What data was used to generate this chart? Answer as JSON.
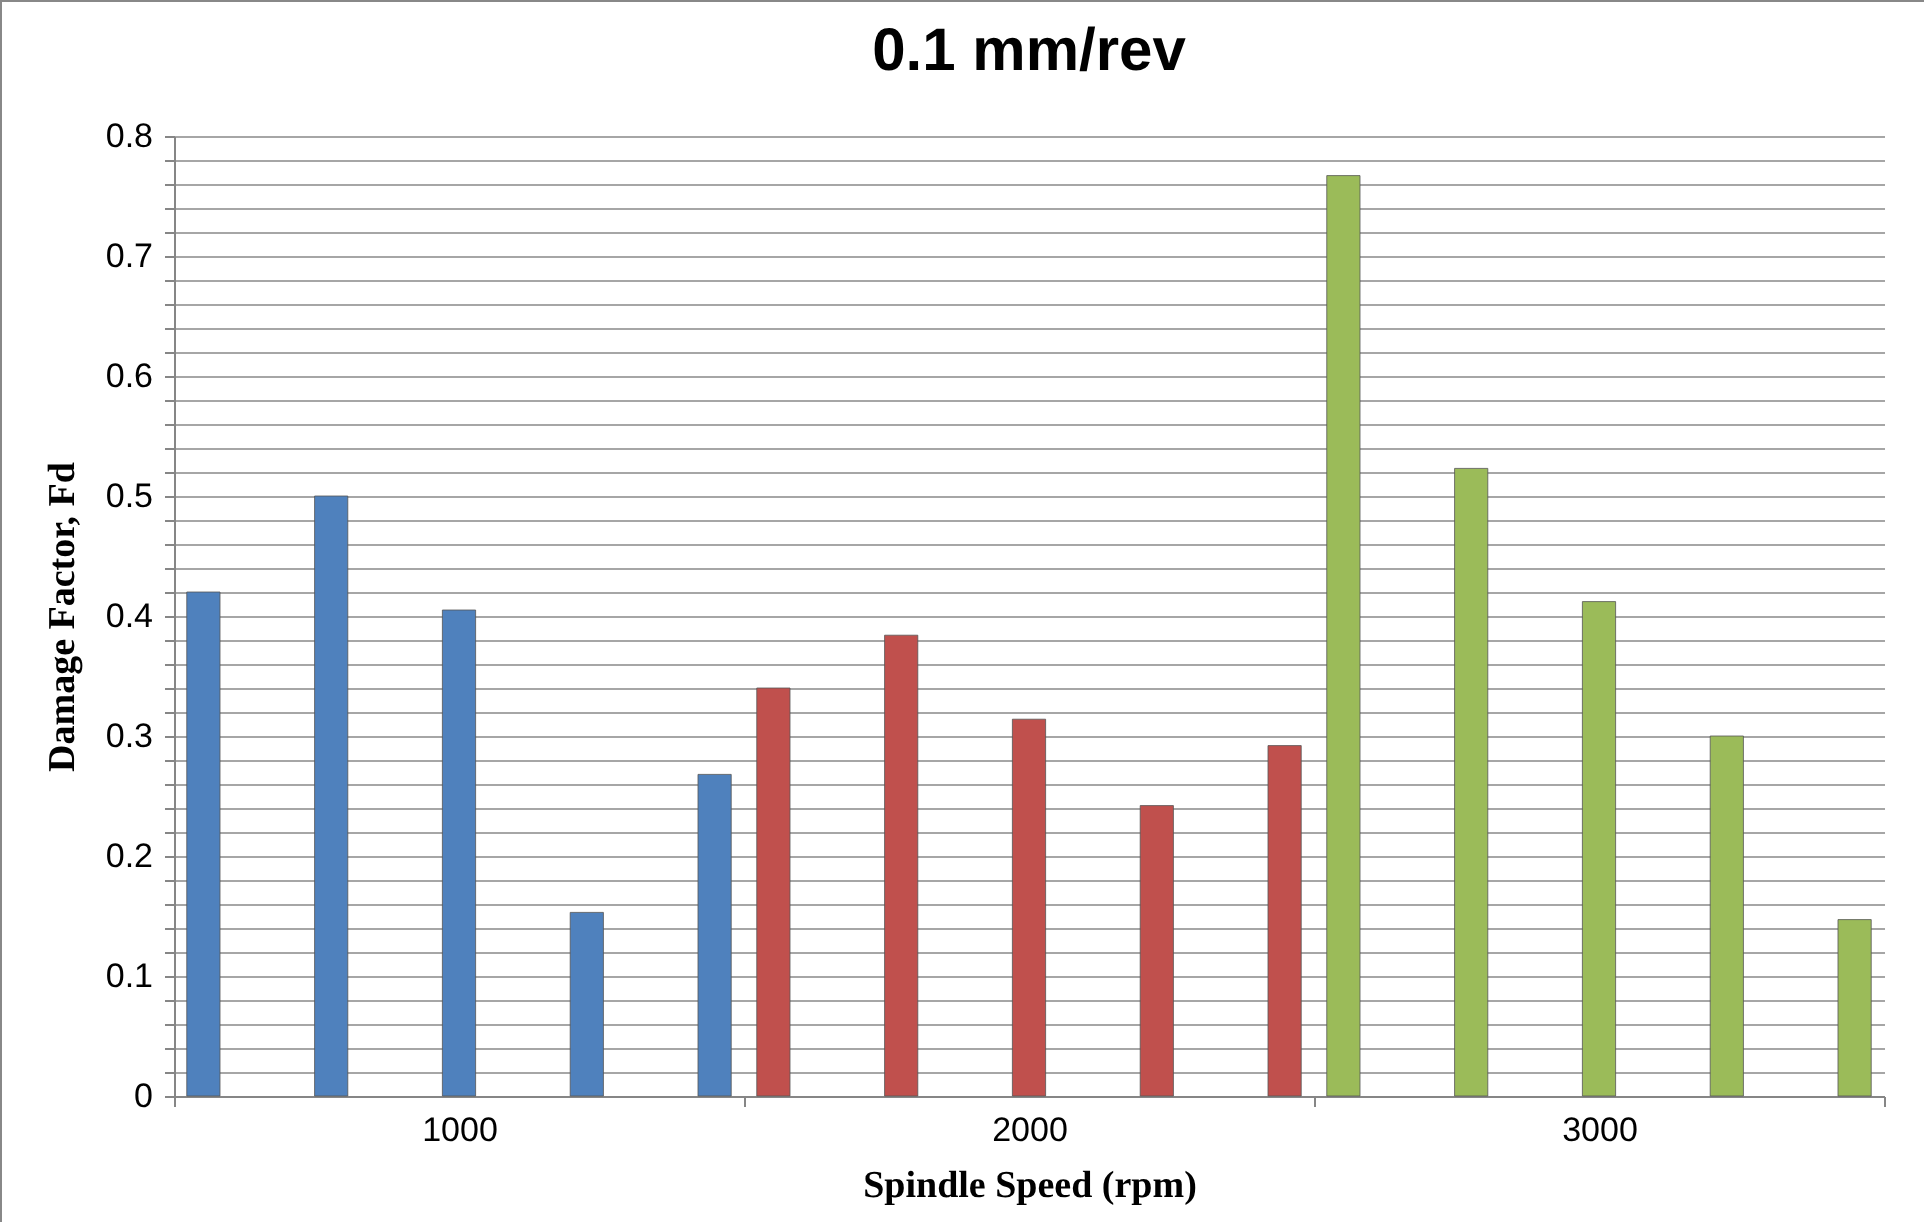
{
  "chart_data": {
    "type": "bar",
    "title": "0.1 mm/rev",
    "xlabel": "Spindle Speed (rpm)",
    "ylabel": "Damage Factor, Fd",
    "categories": [
      "1000",
      "2000",
      "3000"
    ],
    "series": [
      {
        "colors": [
          "#4f81bd",
          "#c0504d",
          "#9bbb59"
        ],
        "values": [
          0.42,
          0.34,
          0.767
        ]
      },
      {
        "colors": [
          "#4f81bd",
          "#c0504d",
          "#9bbb59"
        ],
        "values": [
          0.5,
          0.384,
          0.523
        ]
      },
      {
        "colors": [
          "#4f81bd",
          "#c0504d",
          "#9bbb59"
        ],
        "values": [
          0.405,
          0.314,
          0.412
        ]
      },
      {
        "colors": [
          "#4f81bd",
          "#c0504d",
          "#9bbb59"
        ],
        "values": [
          0.153,
          0.242,
          0.3
        ]
      },
      {
        "colors": [
          "#4f81bd",
          "#c0504d",
          "#9bbb59"
        ],
        "values": [
          0.268,
          0.292,
          0.147
        ]
      }
    ],
    "ylim": [
      0,
      0.8
    ],
    "yticks": [
      0,
      {
        "value": 0.02,
        "label": null
      },
      {
        "value": 0.04,
        "label": null
      },
      {
        "value": 0.06,
        "label": null
      },
      {
        "value": 0.08,
        "label": null
      },
      0.1,
      {
        "value": 0.12,
        "label": null
      },
      {
        "value": 0.14,
        "label": null
      },
      {
        "value": 0.16,
        "label": null
      },
      {
        "value": 0.18,
        "label": null
      },
      0.2,
      {
        "value": 0.22,
        "label": null
      },
      {
        "value": 0.24,
        "label": null
      },
      {
        "value": 0.26,
        "label": null
      },
      {
        "value": 0.28,
        "label": null
      },
      0.3,
      {
        "value": 0.32,
        "label": null
      },
      {
        "value": 0.34,
        "label": null
      },
      {
        "value": 0.36,
        "label": null
      },
      {
        "value": 0.38,
        "label": null
      },
      0.4,
      {
        "value": 0.42,
        "label": null
      },
      {
        "value": 0.44,
        "label": null
      },
      {
        "value": 0.46,
        "label": null
      },
      {
        "value": 0.48,
        "label": null
      },
      0.5,
      {
        "value": 0.52,
        "label": null
      },
      {
        "value": 0.54,
        "label": null
      },
      {
        "value": 0.56,
        "label": null
      },
      {
        "value": 0.58,
        "label": null
      },
      0.6,
      {
        "value": 0.62,
        "label": null
      },
      {
        "value": 0.64,
        "label": null
      },
      {
        "value": 0.66,
        "label": null
      },
      {
        "value": 0.68,
        "label": null
      },
      0.7,
      {
        "value": 0.72,
        "label": null
      },
      {
        "value": 0.74,
        "label": null
      },
      {
        "value": 0.76,
        "label": null
      },
      {
        "value": 0.78,
        "label": null
      },
      0.8
    ],
    "grid": true
  }
}
